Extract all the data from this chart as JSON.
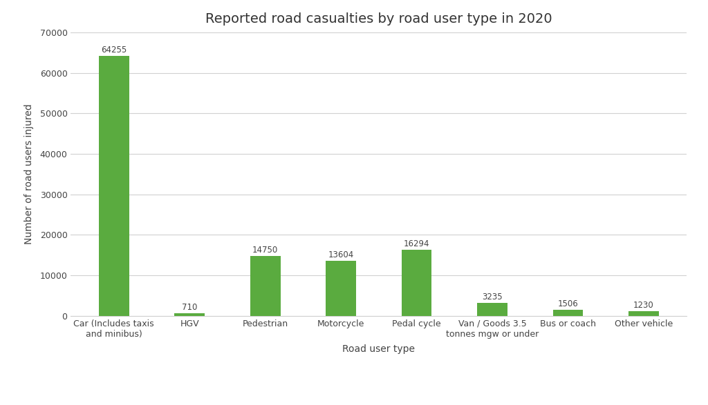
{
  "title": "Reported road casualties by road user type in 2020",
  "xlabel": "Road user type",
  "ylabel": "Number of road users injured",
  "categories": [
    "Car (Includes taxis\nand minibus)",
    "HGV",
    "Pedestrian",
    "Motorcycle",
    "Pedal cycle",
    "Van / Goods 3.5\ntonnes mgw or under",
    "Bus or coach",
    "Other vehicle"
  ],
  "values": [
    64255,
    710,
    14750,
    13604,
    16294,
    3235,
    1506,
    1230
  ],
  "bar_color": "#5aab3f",
  "ylim": [
    0,
    70000
  ],
  "yticks": [
    0,
    10000,
    20000,
    30000,
    40000,
    50000,
    60000,
    70000
  ],
  "background_color": "#ffffff",
  "grid_color": "#d0d0d0",
  "title_fontsize": 14,
  "label_fontsize": 10,
  "tick_fontsize": 9,
  "value_label_fontsize": 8.5
}
